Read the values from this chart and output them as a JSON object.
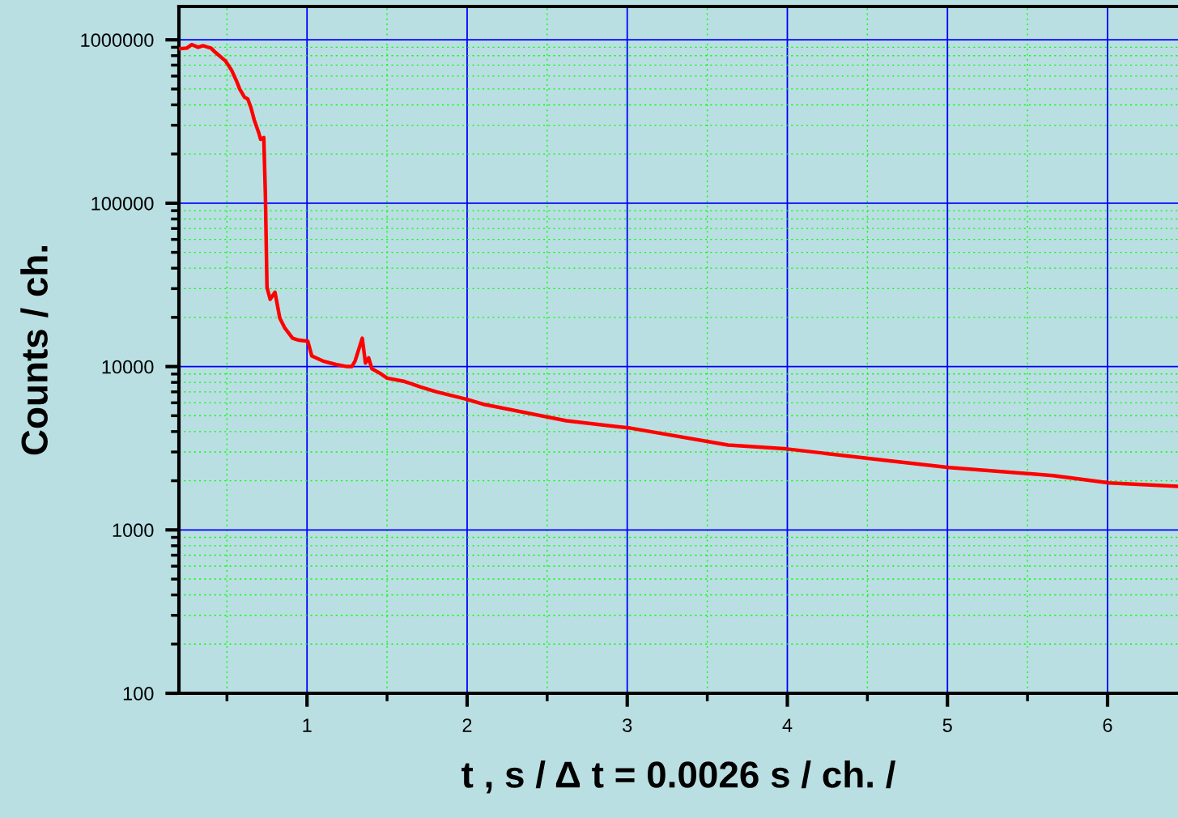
{
  "chart_data": {
    "type": "line",
    "xlabel": "t , s / Δ t = 0.0026 s / ch. /",
    "ylabel": "Counts / ch.",
    "log": "y",
    "grid": true,
    "marker": "none",
    "line_style": "solid",
    "xlim": [
      0.2,
      6.44
    ],
    "ylim": [
      100,
      1600000
    ],
    "xticks": [
      {
        "value": 0.5,
        "label": null
      },
      1,
      {
        "value": 1.5,
        "label": null
      },
      2,
      {
        "value": 2.5,
        "label": null
      },
      3,
      {
        "value": 3.5,
        "label": null
      },
      4,
      {
        "value": 4.5,
        "label": null
      },
      5,
      {
        "value": 5.5,
        "label": null
      },
      6
    ],
    "yticks": [
      100,
      {
        "value": 200,
        "label": null
      },
      {
        "value": 300,
        "label": null
      },
      {
        "value": 400,
        "label": null
      },
      {
        "value": 500,
        "label": null
      },
      {
        "value": 600,
        "label": null
      },
      {
        "value": 700,
        "label": null
      },
      {
        "value": 800,
        "label": null
      },
      {
        "value": 900,
        "label": null
      },
      1000,
      {
        "value": 2000,
        "label": null
      },
      {
        "value": 3000,
        "label": null
      },
      {
        "value": 4000,
        "label": null
      },
      {
        "value": 5000,
        "label": null
      },
      {
        "value": 6000,
        "label": null
      },
      {
        "value": 7000,
        "label": null
      },
      {
        "value": 8000,
        "label": null
      },
      {
        "value": 9000,
        "label": null
      },
      10000,
      {
        "value": 20000,
        "label": null
      },
      {
        "value": 30000,
        "label": null
      },
      {
        "value": 40000,
        "label": null
      },
      {
        "value": 50000,
        "label": null
      },
      {
        "value": 60000,
        "label": null
      },
      {
        "value": 70000,
        "label": null
      },
      {
        "value": 80000,
        "label": null
      },
      {
        "value": 90000,
        "label": null
      },
      100000,
      {
        "value": 200000,
        "label": null
      },
      {
        "value": 300000,
        "label": null
      },
      {
        "value": 400000,
        "label": null
      },
      {
        "value": 500000,
        "label": null
      },
      {
        "value": 600000,
        "label": null
      },
      {
        "value": 700000,
        "label": null
      },
      {
        "value": 800000,
        "label": null
      },
      {
        "value": 900000,
        "label": null
      },
      1000000
    ],
    "series": [
      {
        "color": "#ff0000",
        "x": [
          0.2,
          0.25,
          0.28,
          0.32,
          0.35,
          0.4,
          0.43,
          0.49,
          0.53,
          0.56,
          0.58,
          0.61,
          0.63,
          0.65,
          0.67,
          0.7,
          0.71,
          0.73,
          0.74,
          0.75,
          0.77,
          0.8,
          0.83,
          0.86,
          0.91,
          0.95,
          1.005,
          1.03,
          1.1,
          1.18,
          1.25,
          1.28,
          1.3,
          1.345,
          1.365,
          1.385,
          1.405,
          1.456,
          1.5,
          1.61,
          1.71,
          1.81,
          2.0,
          2.11,
          2.62,
          3.02,
          3.63,
          4.0,
          4.65,
          5.01,
          5.66,
          6.01,
          6.44
        ],
        "values": [
          882000,
          890000,
          935000,
          900000,
          920000,
          890000,
          834000,
          744000,
          649000,
          559000,
          499000,
          445000,
          434000,
          384000,
          324000,
          267000,
          246000,
          252000,
          113000,
          30500,
          25800,
          28500,
          19800,
          17300,
          14900,
          14500,
          14300,
          11600,
          10800,
          10300,
          10000,
          10000,
          10800,
          14900,
          10500,
          11300,
          9700,
          9100,
          8500,
          8100,
          7500,
          7000,
          6300,
          5850,
          4660,
          4200,
          3310,
          3130,
          2640,
          2410,
          2150,
          1940,
          1850
        ]
      }
    ]
  }
}
